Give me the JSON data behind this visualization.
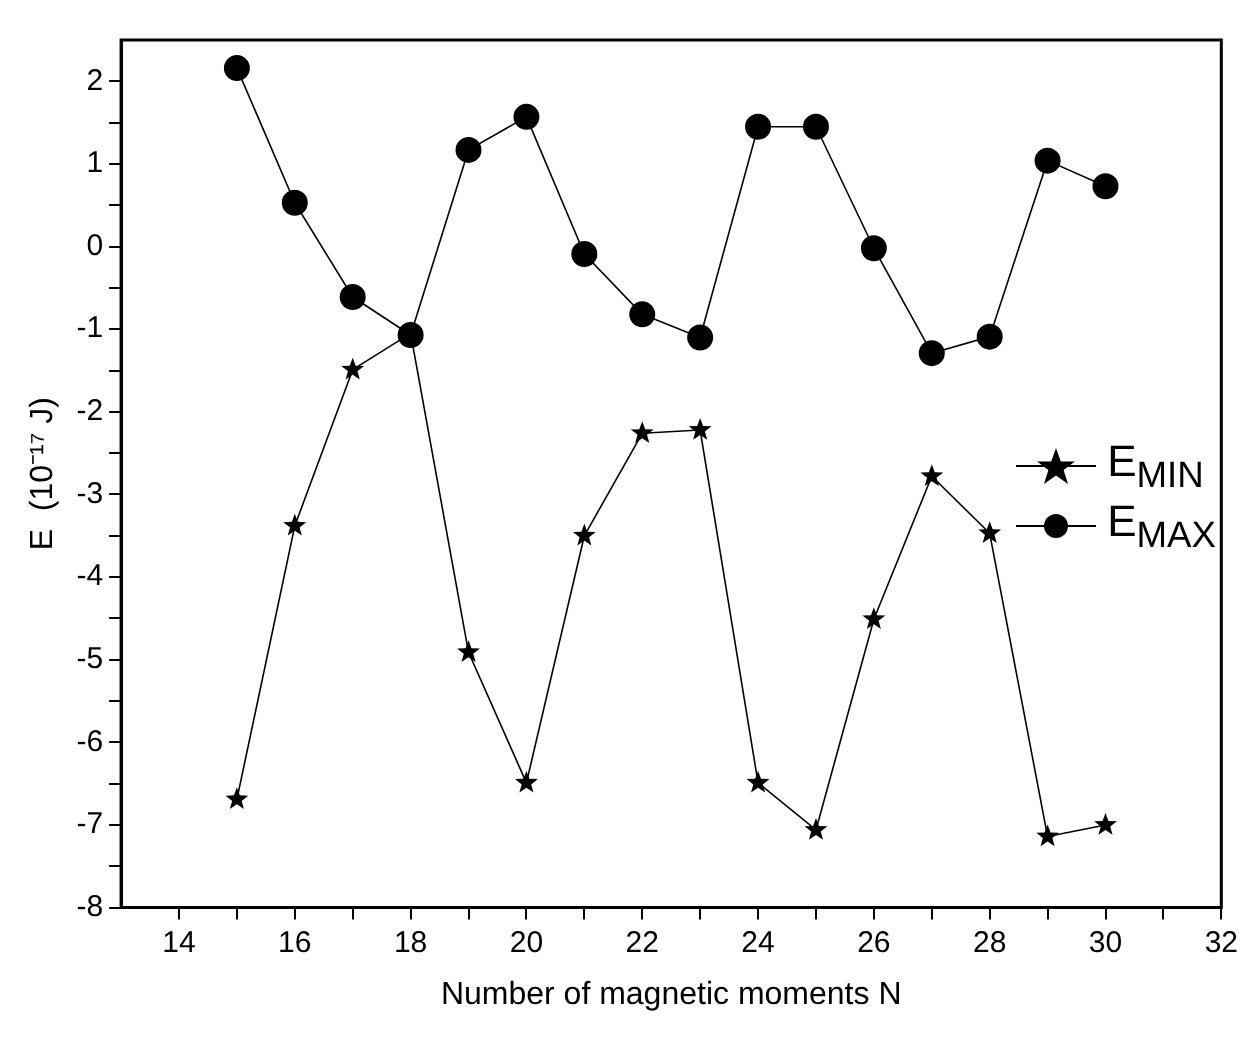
{
  "chart_data": {
    "type": "line",
    "xlabel": "Number of magnetic moments N",
    "ylabel": "E  (10⁻¹⁷ J)",
    "x": [
      15,
      16,
      17,
      18,
      19,
      20,
      21,
      22,
      23,
      24,
      25,
      26,
      27,
      28,
      29,
      30
    ],
    "series": [
      {
        "name": "E$_{MIN}$",
        "color": "#000000",
        "marker": "star",
        "values": [
          -6.69,
          -3.38,
          -1.49,
          -1.05,
          -4.91,
          -6.49,
          -3.5,
          -2.26,
          -2.22,
          -6.49,
          -7.06,
          -4.51,
          -2.78,
          -3.47,
          -7.14,
          -7.0
        ]
      },
      {
        "name": "E$_{MAX}$",
        "color": "#000000",
        "marker": "circle",
        "values": [
          2.16,
          0.53,
          -0.61,
          -1.07,
          1.17,
          1.57,
          -0.09,
          -0.82,
          -1.1,
          1.45,
          1.45,
          -0.02,
          -1.29,
          -1.09,
          1.04,
          0.73
        ]
      }
    ],
    "xlim": [
      13,
      32
    ],
    "xticks": [
      14,
      {
        "value": 15,
        "label": null
      },
      16,
      {
        "value": 17,
        "label": null
      },
      18,
      {
        "value": 19,
        "label": null
      },
      20,
      {
        "value": 21,
        "label": null
      },
      22,
      {
        "value": 23,
        "label": null
      },
      24,
      {
        "value": 25,
        "label": null
      },
      26,
      {
        "value": 27,
        "label": null
      },
      28,
      {
        "value": 29,
        "label": null
      },
      30,
      {
        "value": 31,
        "label": null
      },
      32
    ],
    "ylim": [
      -8,
      2.5
    ],
    "yticks": [
      -8,
      {
        "value": -7.5,
        "label": null
      },
      -7,
      {
        "value": -6.5,
        "label": null
      },
      -6,
      {
        "value": -5.5,
        "label": null
      },
      -5,
      {
        "value": -4.5,
        "label": null
      },
      -4,
      {
        "value": -3.5,
        "label": null
      },
      -3,
      {
        "value": -2.5,
        "label": null
      },
      -2,
      {
        "value": -1.5,
        "label": null
      },
      -1,
      {
        "value": -0.5,
        "label": null
      },
      0,
      {
        "value": 0.5,
        "label": null
      },
      1,
      {
        "value": 1.5,
        "label": null
      },
      2
    ],
    "grid": false,
    "legend": "right",
    "line_style": "solid"
  }
}
